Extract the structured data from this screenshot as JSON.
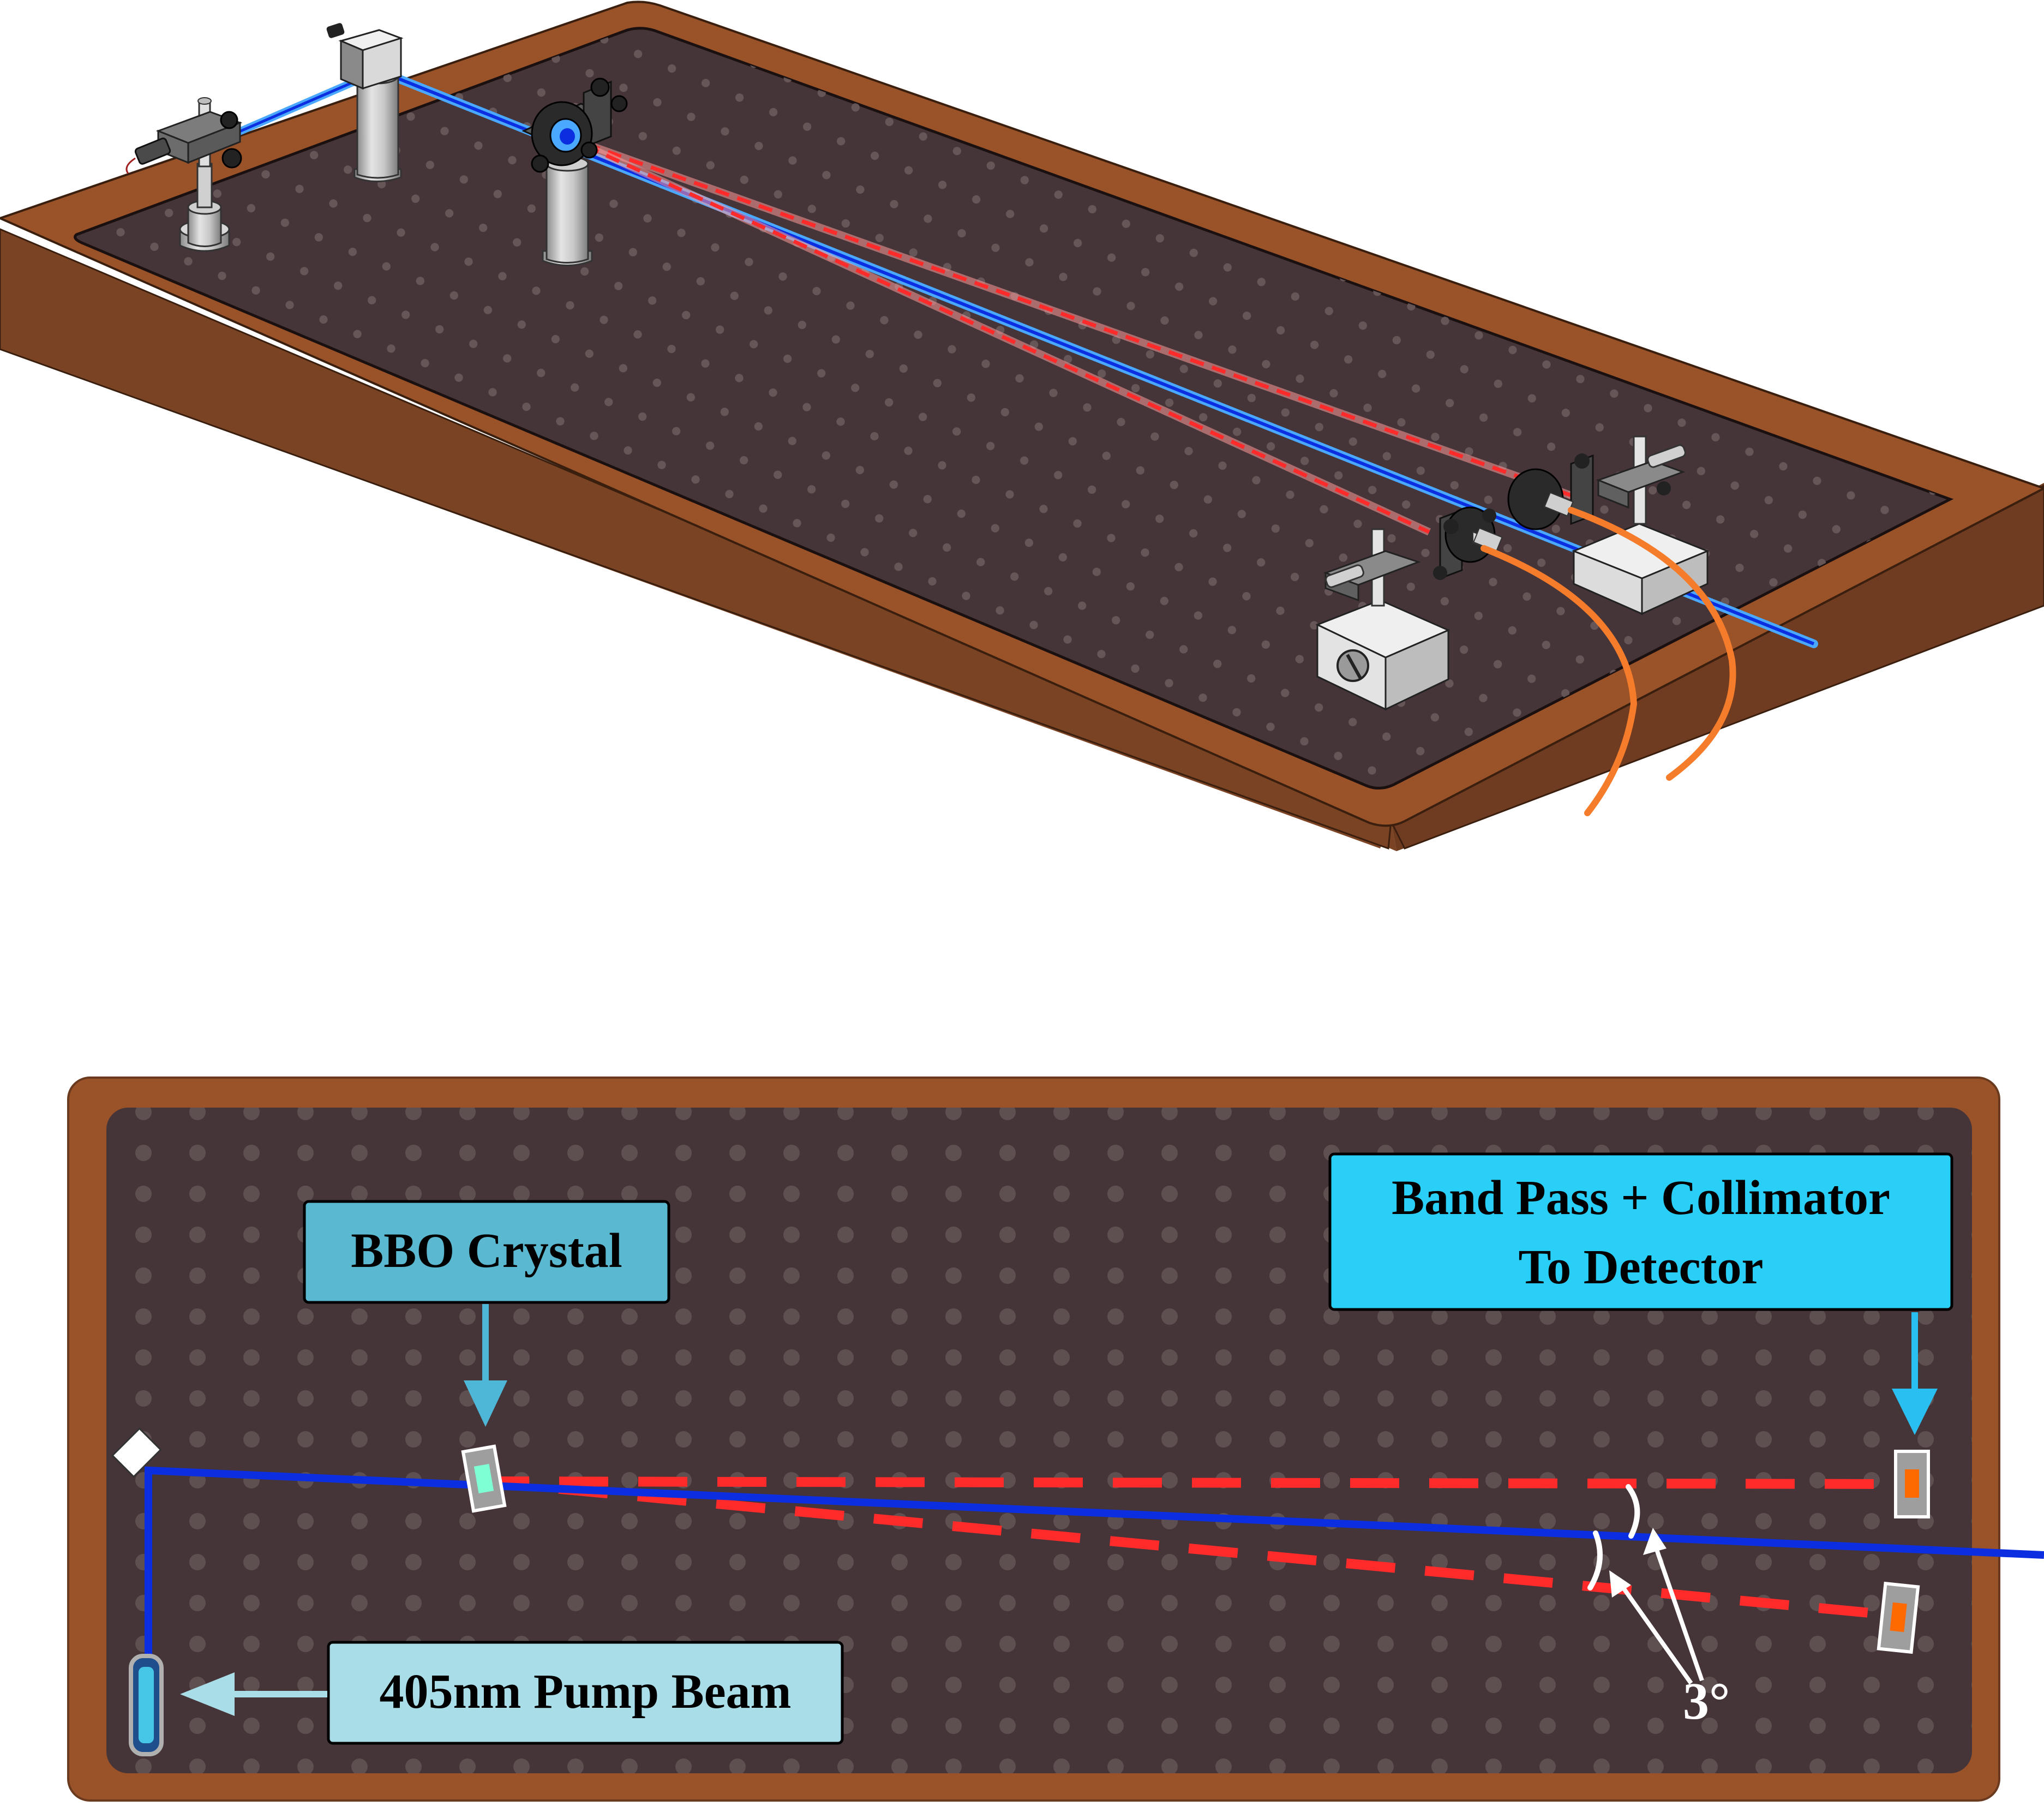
{
  "labels": {
    "bbo_crystal": "BBO Crystal",
    "band_pass_line1": "Band Pass + Collimator",
    "band_pass_line2": "To Detector",
    "pump_beam": "405nm Pump Beam",
    "angle": "3°"
  },
  "colors": {
    "table_wood_top": "#9a5229",
    "table_wood_side": "#7a4424",
    "breadboard": "#463538",
    "breadboard_hole": "#5e5050",
    "pump_beam": "#0b2fe0",
    "pump_beam_glow": "#4aa8ff",
    "photon_beam": "#ff2a2a",
    "fiber": "#f47c2a",
    "bbo_label_bg": "#5ab8d0",
    "band_pass_label_bg": "#29cff7",
    "pump_label_bg": "#a9dde8",
    "arrow_bbo": "#4eb6d6",
    "arrow_bandpass": "#29bff0",
    "arrow_pump": "#a9dde8"
  },
  "icons": [
    "mirror-icon",
    "bbo-crystal-icon",
    "detector-icon",
    "laser-icon",
    "fiber-collimator-icon",
    "translation-stage-icon"
  ]
}
